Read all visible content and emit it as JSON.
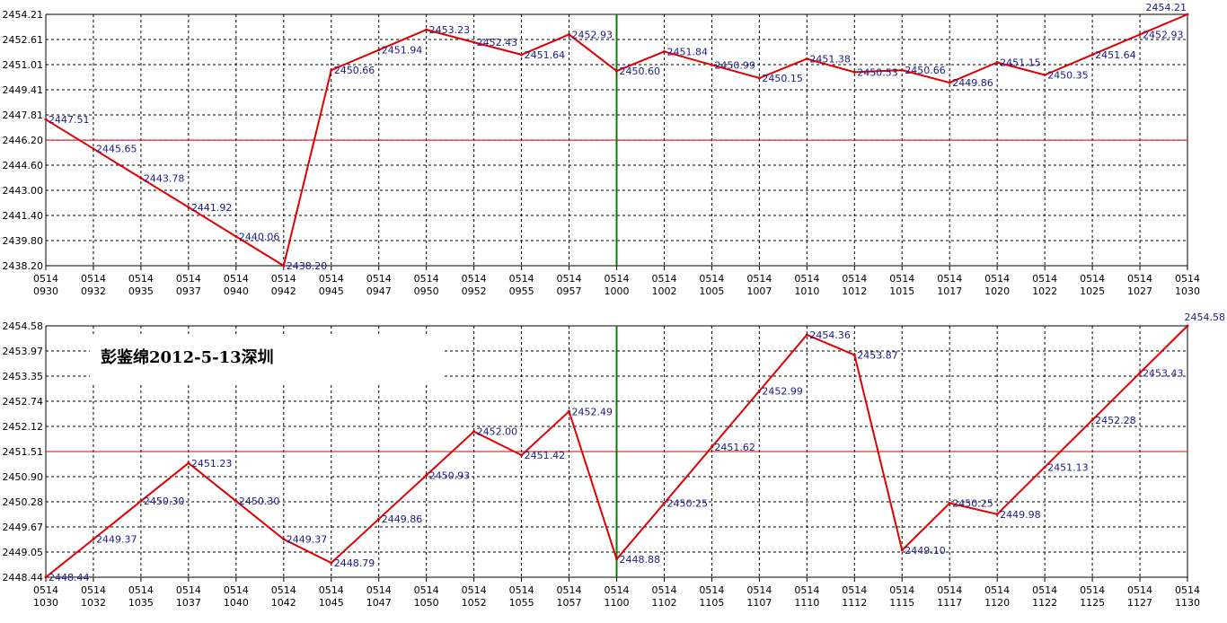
{
  "colors": {
    "line": "#e00000",
    "grid": "#000000",
    "ref_line": "#e00000",
    "divider": "#008000",
    "labels": "#1a1a8c"
  },
  "watermark": "彭鉴绵2012-5-13深圳",
  "chart_data": [
    {
      "type": "line",
      "x_date": "0514",
      "x": [
        "0930",
        "0932",
        "0935",
        "0937",
        "0940",
        "0942",
        "0945",
        "0947",
        "0950",
        "0952",
        "0955",
        "0957",
        "1000",
        "1002",
        "1005",
        "1007",
        "1010",
        "1012",
        "1015",
        "1017",
        "1020",
        "1022",
        "1025",
        "1027",
        "1030"
      ],
      "values": [
        2447.51,
        2445.65,
        2443.78,
        2441.92,
        2440.06,
        2438.2,
        2450.66,
        2451.94,
        2453.23,
        2452.43,
        2451.64,
        2452.93,
        2450.6,
        2451.84,
        2450.99,
        2450.15,
        2451.38,
        2450.53,
        2450.66,
        2449.86,
        2451.15,
        2450.35,
        2451.64,
        2452.93,
        2454.21
      ],
      "y_ticks": [
        "2454.21",
        "2452.61",
        "2451.01",
        "2449.41",
        "2447.81",
        "2446.20",
        "2444.60",
        "2443.00",
        "2441.40",
        "2439.80",
        "2438.20"
      ],
      "ylim": [
        2438.2,
        2454.21
      ],
      "reference_line": 2446.2,
      "vertical_marker": "1000",
      "grid": true
    },
    {
      "type": "line",
      "x_date": "0514",
      "x": [
        "1030",
        "1032",
        "1035",
        "1037",
        "1040",
        "1042",
        "1045",
        "1047",
        "1050",
        "1052",
        "1055",
        "1057",
        "1100",
        "1102",
        "1105",
        "1107",
        "1110",
        "1112",
        "1115",
        "1117",
        "1120",
        "1122",
        "1125",
        "1127",
        "1130"
      ],
      "values": [
        2448.44,
        2449.37,
        2450.3,
        2451.23,
        2450.3,
        2449.37,
        2448.79,
        2449.86,
        2450.93,
        2452.0,
        2451.42,
        2452.49,
        2448.88,
        2450.25,
        2451.62,
        2452.99,
        2454.36,
        2453.87,
        2449.1,
        2450.25,
        2449.98,
        2451.13,
        2452.28,
        2453.43,
        2454.58
      ],
      "y_ticks": [
        "2454.58",
        "2453.97",
        "2453.35",
        "2452.74",
        "2452.12",
        "2451.51",
        "2450.90",
        "2450.28",
        "2449.67",
        "2449.05",
        "2448.44"
      ],
      "ylim": [
        2448.44,
        2454.58
      ],
      "reference_line": 2451.51,
      "vertical_marker": "1100",
      "grid": true
    }
  ]
}
